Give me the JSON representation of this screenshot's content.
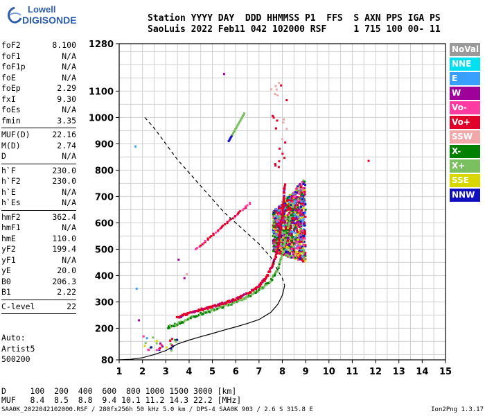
{
  "logo": {
    "line1": "Lowell",
    "line2": "DIGISONDE"
  },
  "header": {
    "row1": "Station YYYY DAY  DDD HHMMSS P1  FFS  S AXN PPS IGA PS",
    "row2": "SaoLuis 2022 Feb11 042 102000 RSF     1 715 100 00- 11"
  },
  "params": {
    "group1": [
      [
        "foF2",
        "8.100"
      ],
      [
        "foF1",
        "N/A"
      ],
      [
        "foF1p",
        "N/A"
      ],
      [
        "foE",
        "N/A"
      ],
      [
        "foEp",
        "2.29"
      ],
      [
        "fxI",
        "9.30"
      ],
      [
        "foEs",
        "N/A"
      ],
      [
        "fmin",
        "3.35"
      ]
    ],
    "group2": [
      [
        "MUF(D)",
        "22.16"
      ],
      [
        "M(D)",
        "2.74"
      ],
      [
        "D",
        "N/A"
      ]
    ],
    "group3": [
      [
        "h`F",
        "230.0"
      ],
      [
        "h`F2",
        "230.0"
      ],
      [
        "h`E",
        "N/A"
      ],
      [
        "h`Es",
        "N/A"
      ]
    ],
    "group4": [
      [
        "hmF2",
        "362.4"
      ],
      [
        "hmF1",
        "N/A"
      ],
      [
        "hmE",
        "110.0"
      ],
      [
        "yF2",
        "199.4"
      ],
      [
        "yF1",
        "N/A"
      ],
      [
        "yE",
        "20.0"
      ],
      [
        "B0",
        "206.3"
      ],
      [
        "B1",
        "2.22"
      ]
    ],
    "group5": [
      [
        "C-level",
        "22"
      ]
    ]
  },
  "auto": {
    "l1": "Auto:",
    "l2": "Artist5",
    "l3": "500200"
  },
  "legend": [
    {
      "label": "NoVal",
      "color": "#9a9a9a"
    },
    {
      "label": "NNE",
      "color": "#00e0f0"
    },
    {
      "label": "E",
      "color": "#3aa0ff"
    },
    {
      "label": "W",
      "color": "#a0009a"
    },
    {
      "label": "Vo-",
      "color": "#ff3aa0"
    },
    {
      "label": "Vo+",
      "color": "#e0002a"
    },
    {
      "label": "SSW",
      "color": "#f0a8a8"
    },
    {
      "label": "X-",
      "color": "#008000"
    },
    {
      "label": "X+",
      "color": "#7ac060"
    },
    {
      "label": "SSE",
      "color": "#d8d800"
    },
    {
      "label": "NNW",
      "color": "#1010c0"
    }
  ],
  "bottom": {
    "row1": "D     100  200  400  600  800 1000 1500 3000 [km]",
    "row2": "MUF   8.4  8.5  8.8  9.4 10.1 11.2 14.3 22.2 [MHz]"
  },
  "footer": {
    "left": "SAA0K_2022042102000.RSF / 280fx256h 50 kHz 5.0 km / DPS-4 SAA0K 903 / 2.6 S 315.8 E",
    "right": "Ion2Png 1.3.17"
  },
  "chart_data": {
    "type": "scatter",
    "xlim": [
      1,
      15
    ],
    "ylim": [
      80,
      1280
    ],
    "x_ticks": [
      1,
      2,
      3,
      4,
      5,
      6,
      7,
      8,
      9,
      10,
      11,
      12,
      13,
      14,
      15
    ],
    "y_ticks": [
      80,
      200,
      300,
      400,
      500,
      600,
      700,
      800,
      900,
      1000,
      1100,
      1280
    ],
    "grid": true,
    "virtual_height_trace": [
      [
        3.5,
        240
      ],
      [
        4,
        258
      ],
      [
        4.5,
        270
      ],
      [
        5,
        282
      ],
      [
        5.5,
        295
      ],
      [
        6,
        310
      ],
      [
        6.5,
        330
      ],
      [
        7,
        360
      ],
      [
        7.3,
        390
      ],
      [
        7.6,
        440
      ],
      [
        7.8,
        500
      ],
      [
        7.9,
        560
      ],
      [
        8.0,
        620
      ],
      [
        8.05,
        680
      ],
      [
        8.1,
        750
      ]
    ],
    "x_trace": [
      [
        3.1,
        205
      ],
      [
        3.5,
        215
      ],
      [
        4,
        235
      ],
      [
        4.5,
        255
      ],
      [
        5,
        268
      ],
      [
        5.5,
        285
      ],
      [
        6,
        300
      ],
      [
        6.5,
        320
      ],
      [
        7,
        345
      ],
      [
        7.5,
        380
      ],
      [
        7.8,
        420
      ],
      [
        8.0,
        480
      ],
      [
        8.2,
        560
      ],
      [
        8.4,
        640
      ]
    ],
    "spread_region": {
      "x": [
        7.6,
        9.0
      ],
      "y": [
        450,
        770
      ]
    },
    "true_height_profile": [
      [
        1,
        80
      ],
      [
        1.5,
        82
      ],
      [
        2,
        88
      ],
      [
        2.5,
        100
      ],
      [
        3,
        115
      ],
      [
        3.5,
        140
      ],
      [
        4,
        155
      ],
      [
        4.5,
        168
      ],
      [
        5,
        180
      ],
      [
        5.5,
        193
      ],
      [
        6,
        205
      ],
      [
        6.5,
        218
      ],
      [
        7,
        233
      ],
      [
        7.5,
        260
      ],
      [
        7.8,
        290
      ],
      [
        8.0,
        325
      ],
      [
        8.1,
        362
      ]
    ],
    "model_dashed": [
      [
        2.1,
        1000
      ],
      [
        2.5,
        960
      ],
      [
        3,
        900
      ],
      [
        3.5,
        840
      ],
      [
        4,
        790
      ],
      [
        4.5,
        740
      ],
      [
        5,
        690
      ],
      [
        5.5,
        640
      ],
      [
        6,
        600
      ],
      [
        6.5,
        560
      ],
      [
        7,
        520
      ],
      [
        7.5,
        470
      ],
      [
        7.8,
        420
      ],
      [
        8.0,
        390
      ],
      [
        8.1,
        362
      ]
    ]
  }
}
